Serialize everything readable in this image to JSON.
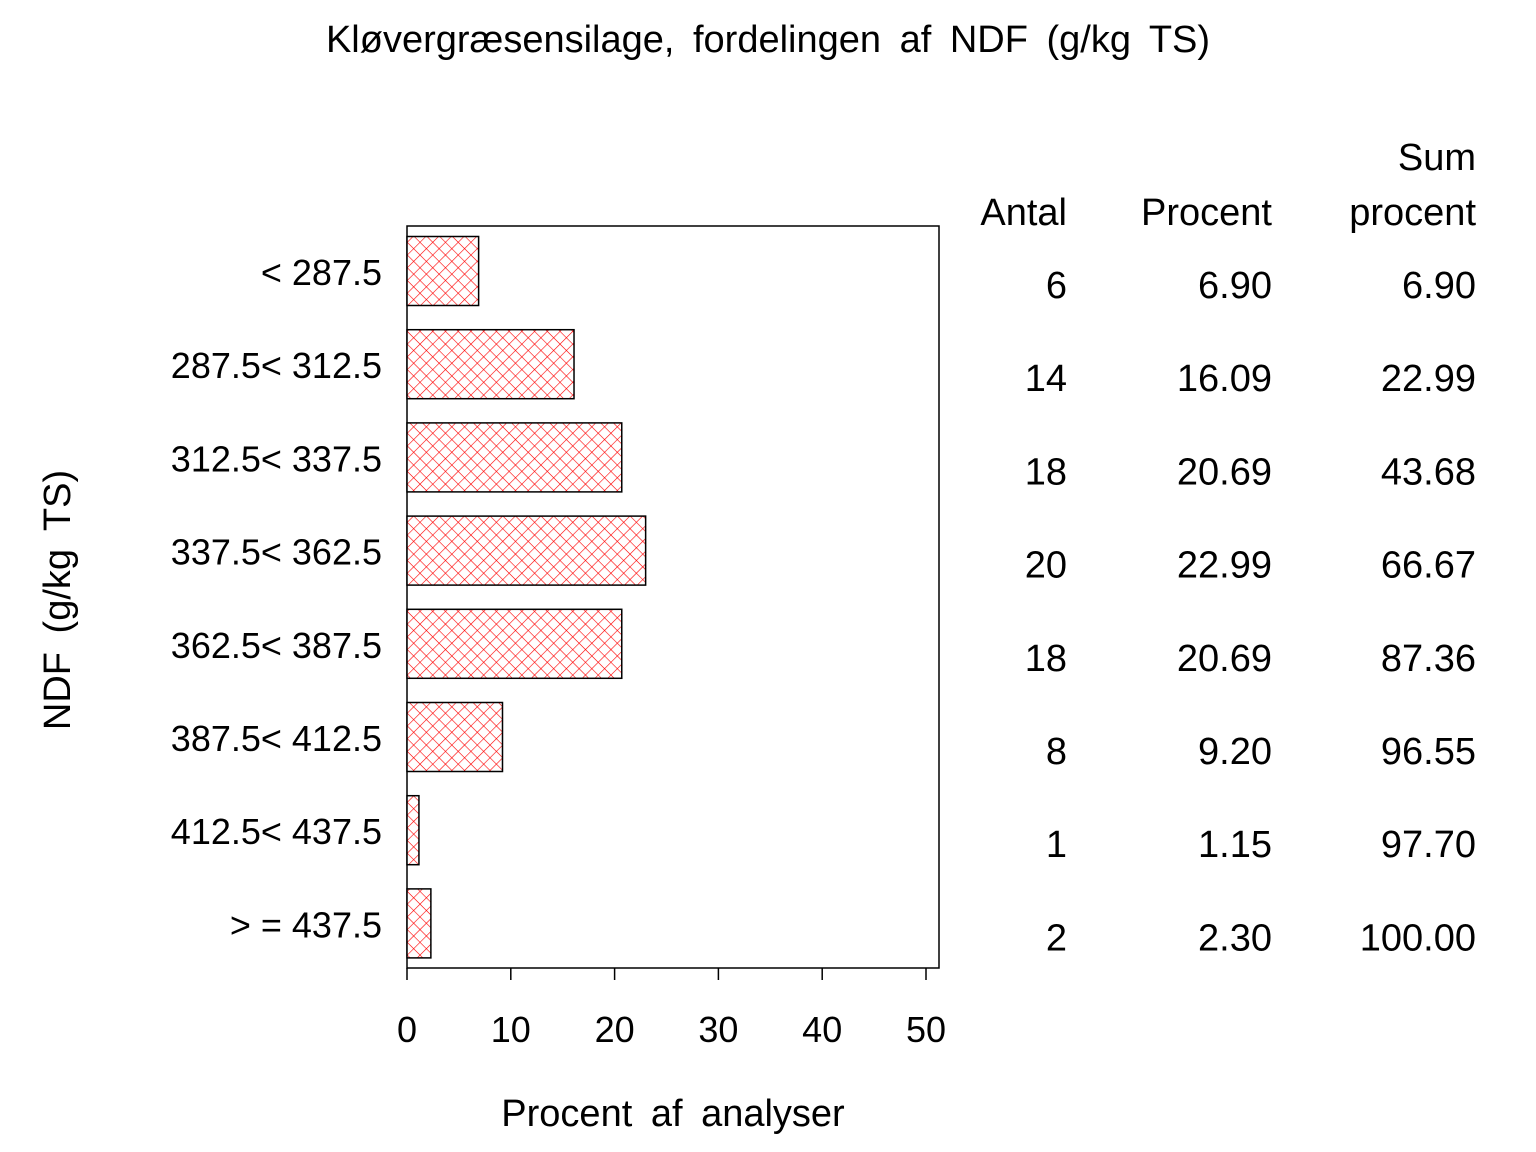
{
  "chart_data": {
    "type": "bar",
    "orientation": "horizontal",
    "title": "Kløvergræsensilage, fordelingen af NDF (g/kg TS)",
    "xlabel": "Procent af analyser",
    "ylabel": "NDF (g/kg TS)",
    "xlim": [
      0,
      50
    ],
    "xticks": [
      "0",
      "10",
      "20",
      "30",
      "40",
      "50"
    ],
    "categories": [
      "< 287.5",
      "287.5< 312.5",
      "312.5< 337.5",
      "337.5< 362.5",
      "362.5< 387.5",
      "387.5< 412.5",
      "412.5< 437.5",
      "> = 437.5"
    ],
    "values": [
      6.9,
      16.09,
      20.69,
      22.99,
      20.69,
      9.2,
      1.15,
      2.3
    ],
    "bar_color": "#ff0000",
    "bar_pattern": "crosshatch",
    "grid": false,
    "table": {
      "headers": [
        [
          "",
          "Antal"
        ],
        [
          "",
          "Procent"
        ],
        [
          "Sum",
          "procent"
        ]
      ],
      "rows": [
        [
          "6",
          "6.90",
          "6.90"
        ],
        [
          "14",
          "16.09",
          "22.99"
        ],
        [
          "18",
          "20.69",
          "43.68"
        ],
        [
          "20",
          "22.99",
          "66.67"
        ],
        [
          "18",
          "20.69",
          "87.36"
        ],
        [
          "8",
          "9.20",
          "96.55"
        ],
        [
          "1",
          "1.15",
          "97.70"
        ],
        [
          "2",
          "2.30",
          "100.00"
        ]
      ]
    }
  }
}
